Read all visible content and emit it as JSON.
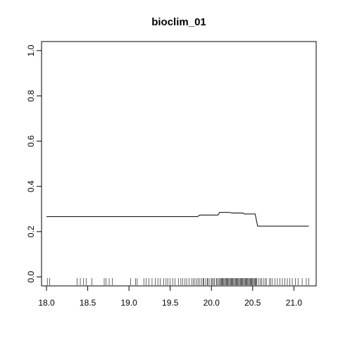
{
  "chart_data": {
    "type": "line",
    "title": "bioclim_01",
    "xlabel": "",
    "ylabel": "",
    "xlim": [
      17.94,
      21.27
    ],
    "ylim": [
      -0.04,
      1.04
    ],
    "x_ticks": [
      18.0,
      18.5,
      19.0,
      19.5,
      20.0,
      20.5,
      21.0
    ],
    "x_tick_labels": [
      "18.0",
      "18.5",
      "19.0",
      "19.5",
      "20.0",
      "20.5",
      "21.0"
    ],
    "y_ticks": [
      0.0,
      0.2,
      0.4,
      0.6,
      0.8,
      1.0
    ],
    "y_tick_labels": [
      "0.0",
      "0.2",
      "0.4",
      "0.6",
      "0.8",
      "1.0"
    ],
    "grid": false,
    "legend": "none",
    "line_color": "#000000",
    "series": [
      {
        "x": [
          18.0,
          19.83,
          19.86,
          20.08,
          20.1,
          20.22,
          20.25,
          20.38,
          20.4,
          20.53,
          20.56,
          21.18
        ],
        "y": [
          0.266,
          0.266,
          0.273,
          0.273,
          0.285,
          0.285,
          0.282,
          0.282,
          0.278,
          0.278,
          0.224,
          0.224
        ]
      }
    ],
    "rug_x": [
      18.01,
      18.04,
      18.37,
      18.41,
      18.45,
      18.48,
      18.55,
      18.7,
      18.72,
      18.76,
      18.8,
      19.02,
      19.08,
      19.1,
      19.18,
      19.21,
      19.24,
      19.28,
      19.32,
      19.35,
      19.38,
      19.42,
      19.45,
      19.47,
      19.5,
      19.53,
      19.56,
      19.6,
      19.63,
      19.65,
      19.68,
      19.7,
      19.73,
      19.76,
      19.78,
      19.8,
      19.82,
      19.84,
      19.86,
      19.88,
      19.9,
      19.91,
      19.93,
      19.95,
      19.96,
      19.98,
      20.0,
      20.01,
      20.03,
      20.04,
      20.06,
      20.07,
      20.09,
      20.1,
      20.11,
      20.12,
      20.13,
      20.14,
      20.15,
      20.16,
      20.17,
      20.18,
      20.19,
      20.2,
      20.21,
      20.22,
      20.23,
      20.24,
      20.25,
      20.26,
      20.27,
      20.28,
      20.29,
      20.3,
      20.31,
      20.32,
      20.33,
      20.34,
      20.35,
      20.36,
      20.37,
      20.38,
      20.39,
      20.4,
      20.41,
      20.42,
      20.43,
      20.44,
      20.45,
      20.46,
      20.47,
      20.48,
      20.49,
      20.5,
      20.51,
      20.52,
      20.53,
      20.54,
      20.55,
      20.57,
      20.59,
      20.61,
      20.63,
      20.65,
      20.67,
      20.7,
      20.72,
      20.74,
      20.77,
      20.8,
      20.83,
      20.86,
      20.89,
      20.92,
      20.95,
      20.98,
      21.02,
      21.05,
      21.1,
      21.15,
      21.18
    ]
  }
}
